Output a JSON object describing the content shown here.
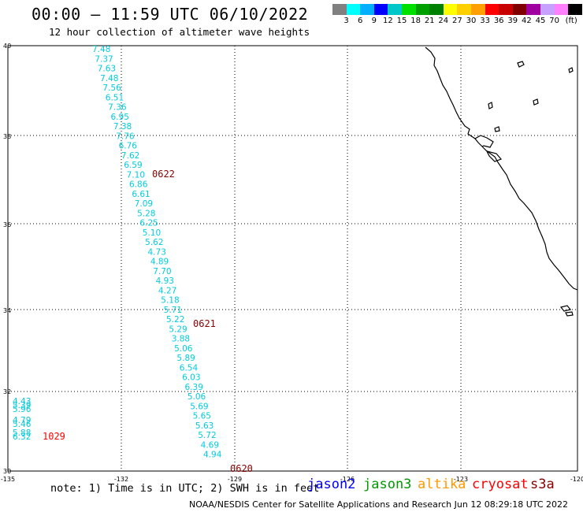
{
  "header": {
    "title": "00:00 – 11:59 UTC 06/10/2022",
    "subtitle": "12 hour collection of altimeter wave heights"
  },
  "legend": {
    "colors": [
      "#808080",
      "#00ffff",
      "#00b0ff",
      "#0000ff",
      "#00c8c8",
      "#00e000",
      "#00a000",
      "#008000",
      "#ffff00",
      "#ffd000",
      "#ffa000",
      "#ff0000",
      "#c80000",
      "#800000",
      "#a000a0",
      "#c8a0ff",
      "#ff80ff",
      "#000000"
    ],
    "labels": [
      "3",
      "6",
      "9",
      "12",
      "15",
      "18",
      "21",
      "24",
      "27",
      "30",
      "33",
      "36",
      "39",
      "42",
      "45",
      "70",
      "(ft)"
    ]
  },
  "map": {
    "lat_labels": [
      "40",
      "38",
      "36",
      "34",
      "32",
      "30"
    ],
    "lon_labels": [
      "-135",
      "-132",
      "-129",
      "-126",
      "-123",
      "-120"
    ],
    "wave_color": "#00ccdd",
    "track_a": [
      "7.48",
      "7.37",
      "7.63",
      "7.48",
      "7.56",
      "6.51",
      "7.36",
      "6.95",
      "7.38",
      "7.76",
      "6.76",
      "7.62",
      "6.59",
      "7.10",
      "6.86",
      "6.61",
      "7.09",
      "5.28",
      "6.25",
      "5.10",
      "5.62",
      "4.73",
      "4.89",
      "7.70",
      "4.93",
      "4.27",
      "5.18",
      "5.71",
      "5.22",
      "5.29",
      "3.88",
      "5.06",
      "5.89",
      "6.54",
      "6.03",
      "6.39",
      "5.06",
      "5.69",
      "5.65",
      "5.63",
      "5.72",
      "4.69",
      "4.94"
    ],
    "track_b": [
      "4.43",
      "5.39",
      "5.96",
      "4.79",
      "5.46",
      "5.88",
      "6.32"
    ],
    "time_labels": [
      {
        "text": "0622",
        "color": "#880000"
      },
      {
        "text": "0621",
        "color": "#880000"
      },
      {
        "text": "0620",
        "color": "#880000"
      },
      {
        "text": "1029",
        "color": "#ff0000"
      }
    ]
  },
  "footer": {
    "note": "note: 1) Time is in UTC; 2) SWH is in feet",
    "satellites": [
      {
        "name": "jason2",
        "color": "#0000ff"
      },
      {
        "name": "jason3",
        "color": "#009900"
      },
      {
        "name": "altika",
        "color": "#ff9900"
      },
      {
        "name": "cryosat",
        "color": "#ff0000"
      },
      {
        "name": "s3a",
        "color": "#880000"
      }
    ],
    "credit": "NOAA/NESDIS Center for Satellite Applications and Research   Jun 12 08:29:18 UTC 2022"
  }
}
